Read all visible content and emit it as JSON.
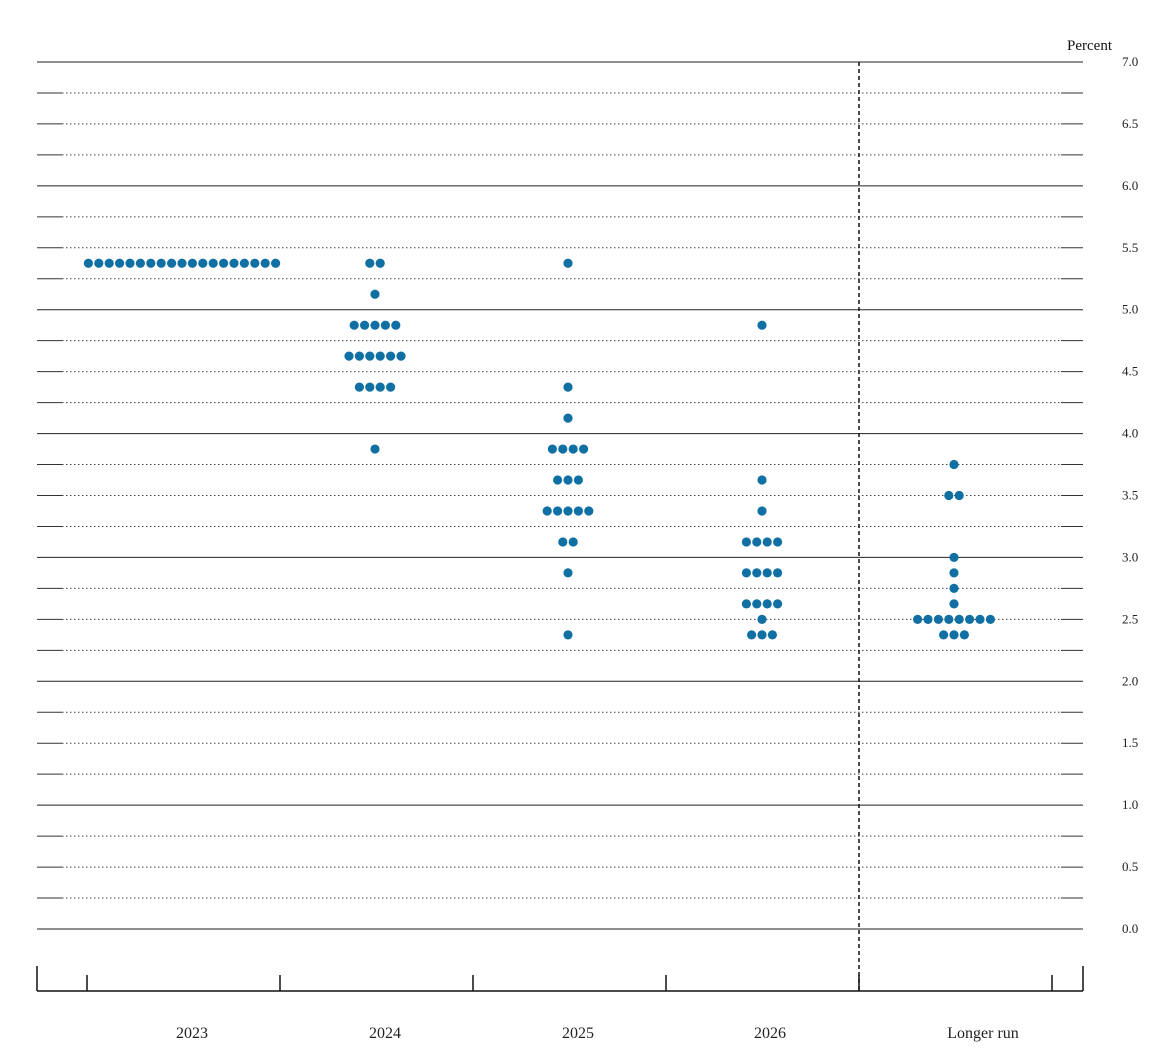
{
  "chart_data": {
    "type": "scatter",
    "unit_label": "Percent",
    "categories": [
      "2023",
      "2024",
      "2025",
      "2026",
      "Longer run"
    ],
    "ylim": [
      0,
      7.0
    ],
    "y_ticks": [
      "0.0",
      "0.5",
      "1.0",
      "1.5",
      "2.0",
      "2.5",
      "3.0",
      "3.5",
      "4.0",
      "4.5",
      "5.0",
      "5.5",
      "6.0",
      "6.5",
      "7.0"
    ],
    "grid": true,
    "dot_color": "#1170a3",
    "dots": [
      {
        "category": "2023",
        "rows": [
          {
            "value": 5.375,
            "count": 19
          }
        ]
      },
      {
        "category": "2024",
        "rows": [
          {
            "value": 5.375,
            "count": 2
          },
          {
            "value": 5.125,
            "count": 1
          },
          {
            "value": 4.875,
            "count": 5
          },
          {
            "value": 4.625,
            "count": 6
          },
          {
            "value": 4.375,
            "count": 4
          },
          {
            "value": 3.875,
            "count": 1
          }
        ]
      },
      {
        "category": "2025",
        "rows": [
          {
            "value": 5.375,
            "count": 1
          },
          {
            "value": 4.375,
            "count": 1
          },
          {
            "value": 4.125,
            "count": 1
          },
          {
            "value": 3.875,
            "count": 4
          },
          {
            "value": 3.625,
            "count": 3
          },
          {
            "value": 3.375,
            "count": 5
          },
          {
            "value": 3.125,
            "count": 2
          },
          {
            "value": 2.875,
            "count": 1
          },
          {
            "value": 2.375,
            "count": 1
          }
        ]
      },
      {
        "category": "2026",
        "rows": [
          {
            "value": 4.875,
            "count": 1
          },
          {
            "value": 3.625,
            "count": 1
          },
          {
            "value": 3.375,
            "count": 1
          },
          {
            "value": 3.125,
            "count": 4
          },
          {
            "value": 2.875,
            "count": 4
          },
          {
            "value": 2.625,
            "count": 4
          },
          {
            "value": 2.5,
            "count": 1
          },
          {
            "value": 2.375,
            "count": 3
          }
        ]
      },
      {
        "category": "Longer run",
        "rows": [
          {
            "value": 3.75,
            "count": 1
          },
          {
            "value": 3.5,
            "count": 2
          },
          {
            "value": 3.0,
            "count": 1
          },
          {
            "value": 2.875,
            "count": 1
          },
          {
            "value": 2.75,
            "count": 1
          },
          {
            "value": 2.625,
            "count": 1
          },
          {
            "value": 2.5,
            "count": 8
          },
          {
            "value": 2.375,
            "count": 3
          }
        ]
      }
    ]
  }
}
